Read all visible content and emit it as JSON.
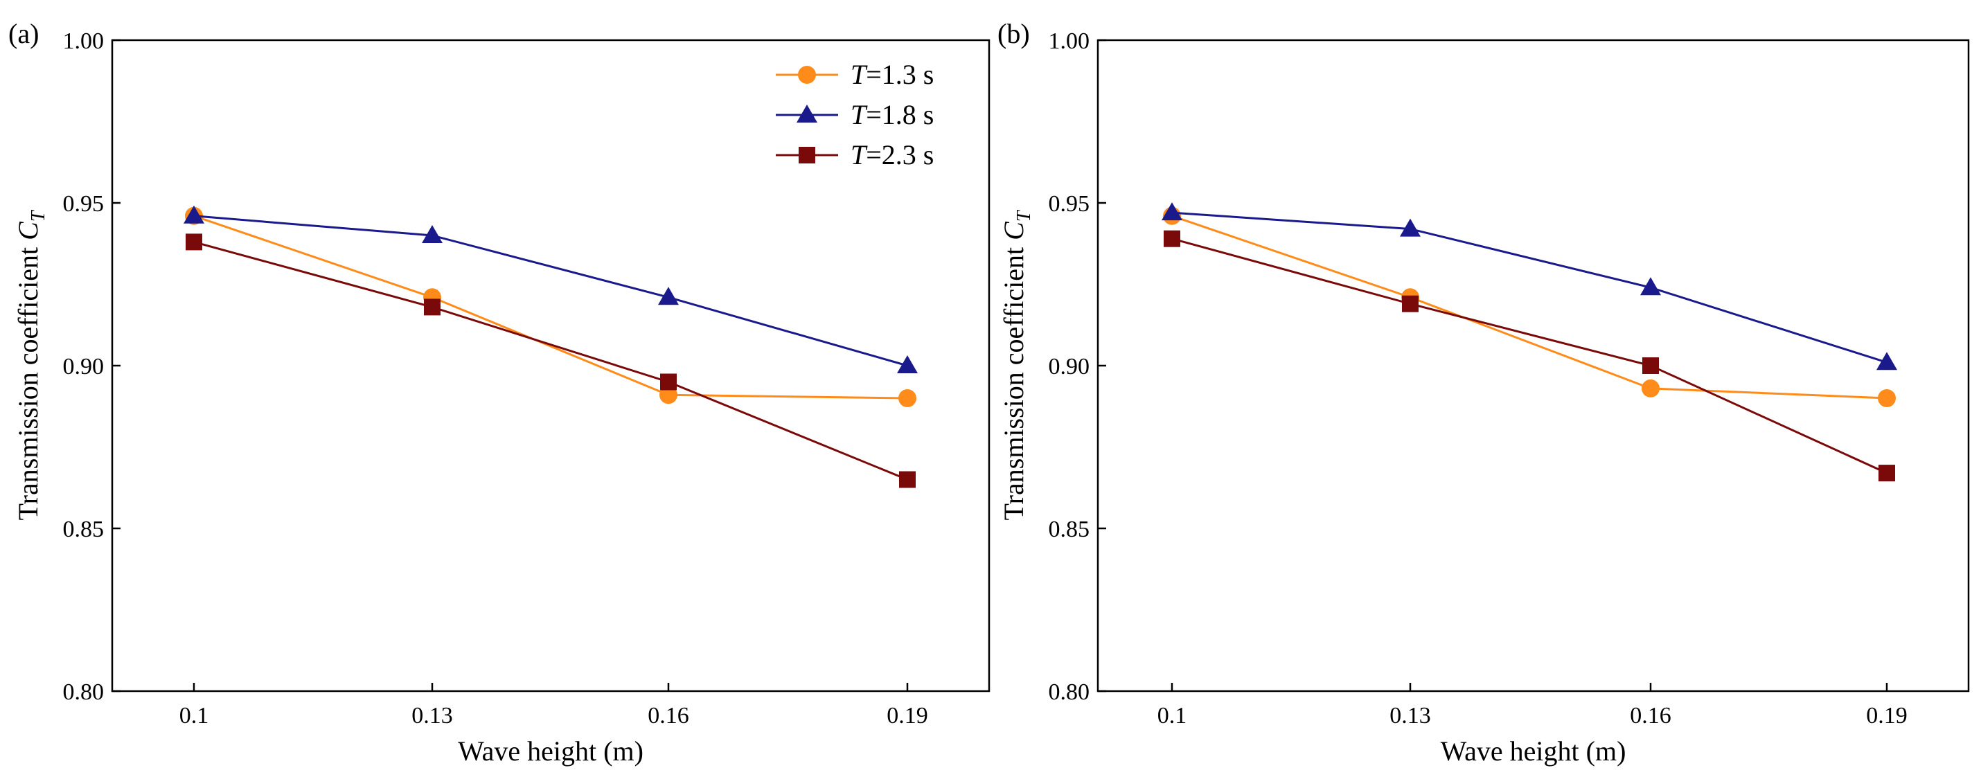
{
  "colors": {
    "axis": "#000000",
    "background": "#ffffff"
  },
  "chart_data": [
    {
      "panel_label": "(a)",
      "type": "line",
      "x": [
        0.1,
        0.13,
        0.16,
        0.19
      ],
      "xticklabels": [
        "0.1",
        "0.13",
        "0.16",
        "0.19"
      ],
      "xlabel": "Wave height (m)",
      "ylabel_main": "Transmission coefficient ",
      "ylabel_sym": "C",
      "ylabel_sub": "T",
      "ylim": [
        0.8,
        1.0
      ],
      "yticks": [
        0.8,
        0.85,
        0.9,
        0.95,
        1.0
      ],
      "yticklabels": [
        "0.80",
        "0.85",
        "0.90",
        "0.95",
        "1.00"
      ],
      "legend_position": "top-right",
      "series": [
        {
          "sym": "T",
          "name": "=1.3 s",
          "color": "#FF8C1A",
          "marker": "circle",
          "values": [
            0.946,
            0.921,
            0.891,
            0.89
          ]
        },
        {
          "sym": "T",
          "name": "=1.8 s",
          "color": "#1A1A8C",
          "marker": "triangle",
          "values": [
            0.946,
            0.94,
            0.921,
            0.9
          ]
        },
        {
          "sym": "T",
          "name": "=2.3 s",
          "color": "#7A0A0A",
          "marker": "square",
          "values": [
            0.938,
            0.918,
            0.895,
            0.865
          ]
        }
      ]
    },
    {
      "panel_label": "(b)",
      "type": "line",
      "x": [
        0.1,
        0.13,
        0.16,
        0.19
      ],
      "xticklabels": [
        "0.1",
        "0.13",
        "0.16",
        "0.19"
      ],
      "xlabel": "Wave height (m)",
      "ylabel_main": "Transmission coefficient ",
      "ylabel_sym": "C",
      "ylabel_sub": "T",
      "ylim": [
        0.8,
        1.0
      ],
      "yticks": [
        0.8,
        0.85,
        0.9,
        0.95,
        1.0
      ],
      "yticklabels": [
        "0.80",
        "0.85",
        "0.90",
        "0.95",
        "1.00"
      ],
      "series": [
        {
          "color": "#FF8C1A",
          "marker": "circle",
          "values": [
            0.946,
            0.921,
            0.893,
            0.89
          ]
        },
        {
          "color": "#1A1A8C",
          "marker": "triangle",
          "values": [
            0.947,
            0.942,
            0.924,
            0.901
          ]
        },
        {
          "color": "#7A0A0A",
          "marker": "square",
          "values": [
            0.939,
            0.919,
            0.9,
            0.867
          ]
        }
      ]
    }
  ]
}
